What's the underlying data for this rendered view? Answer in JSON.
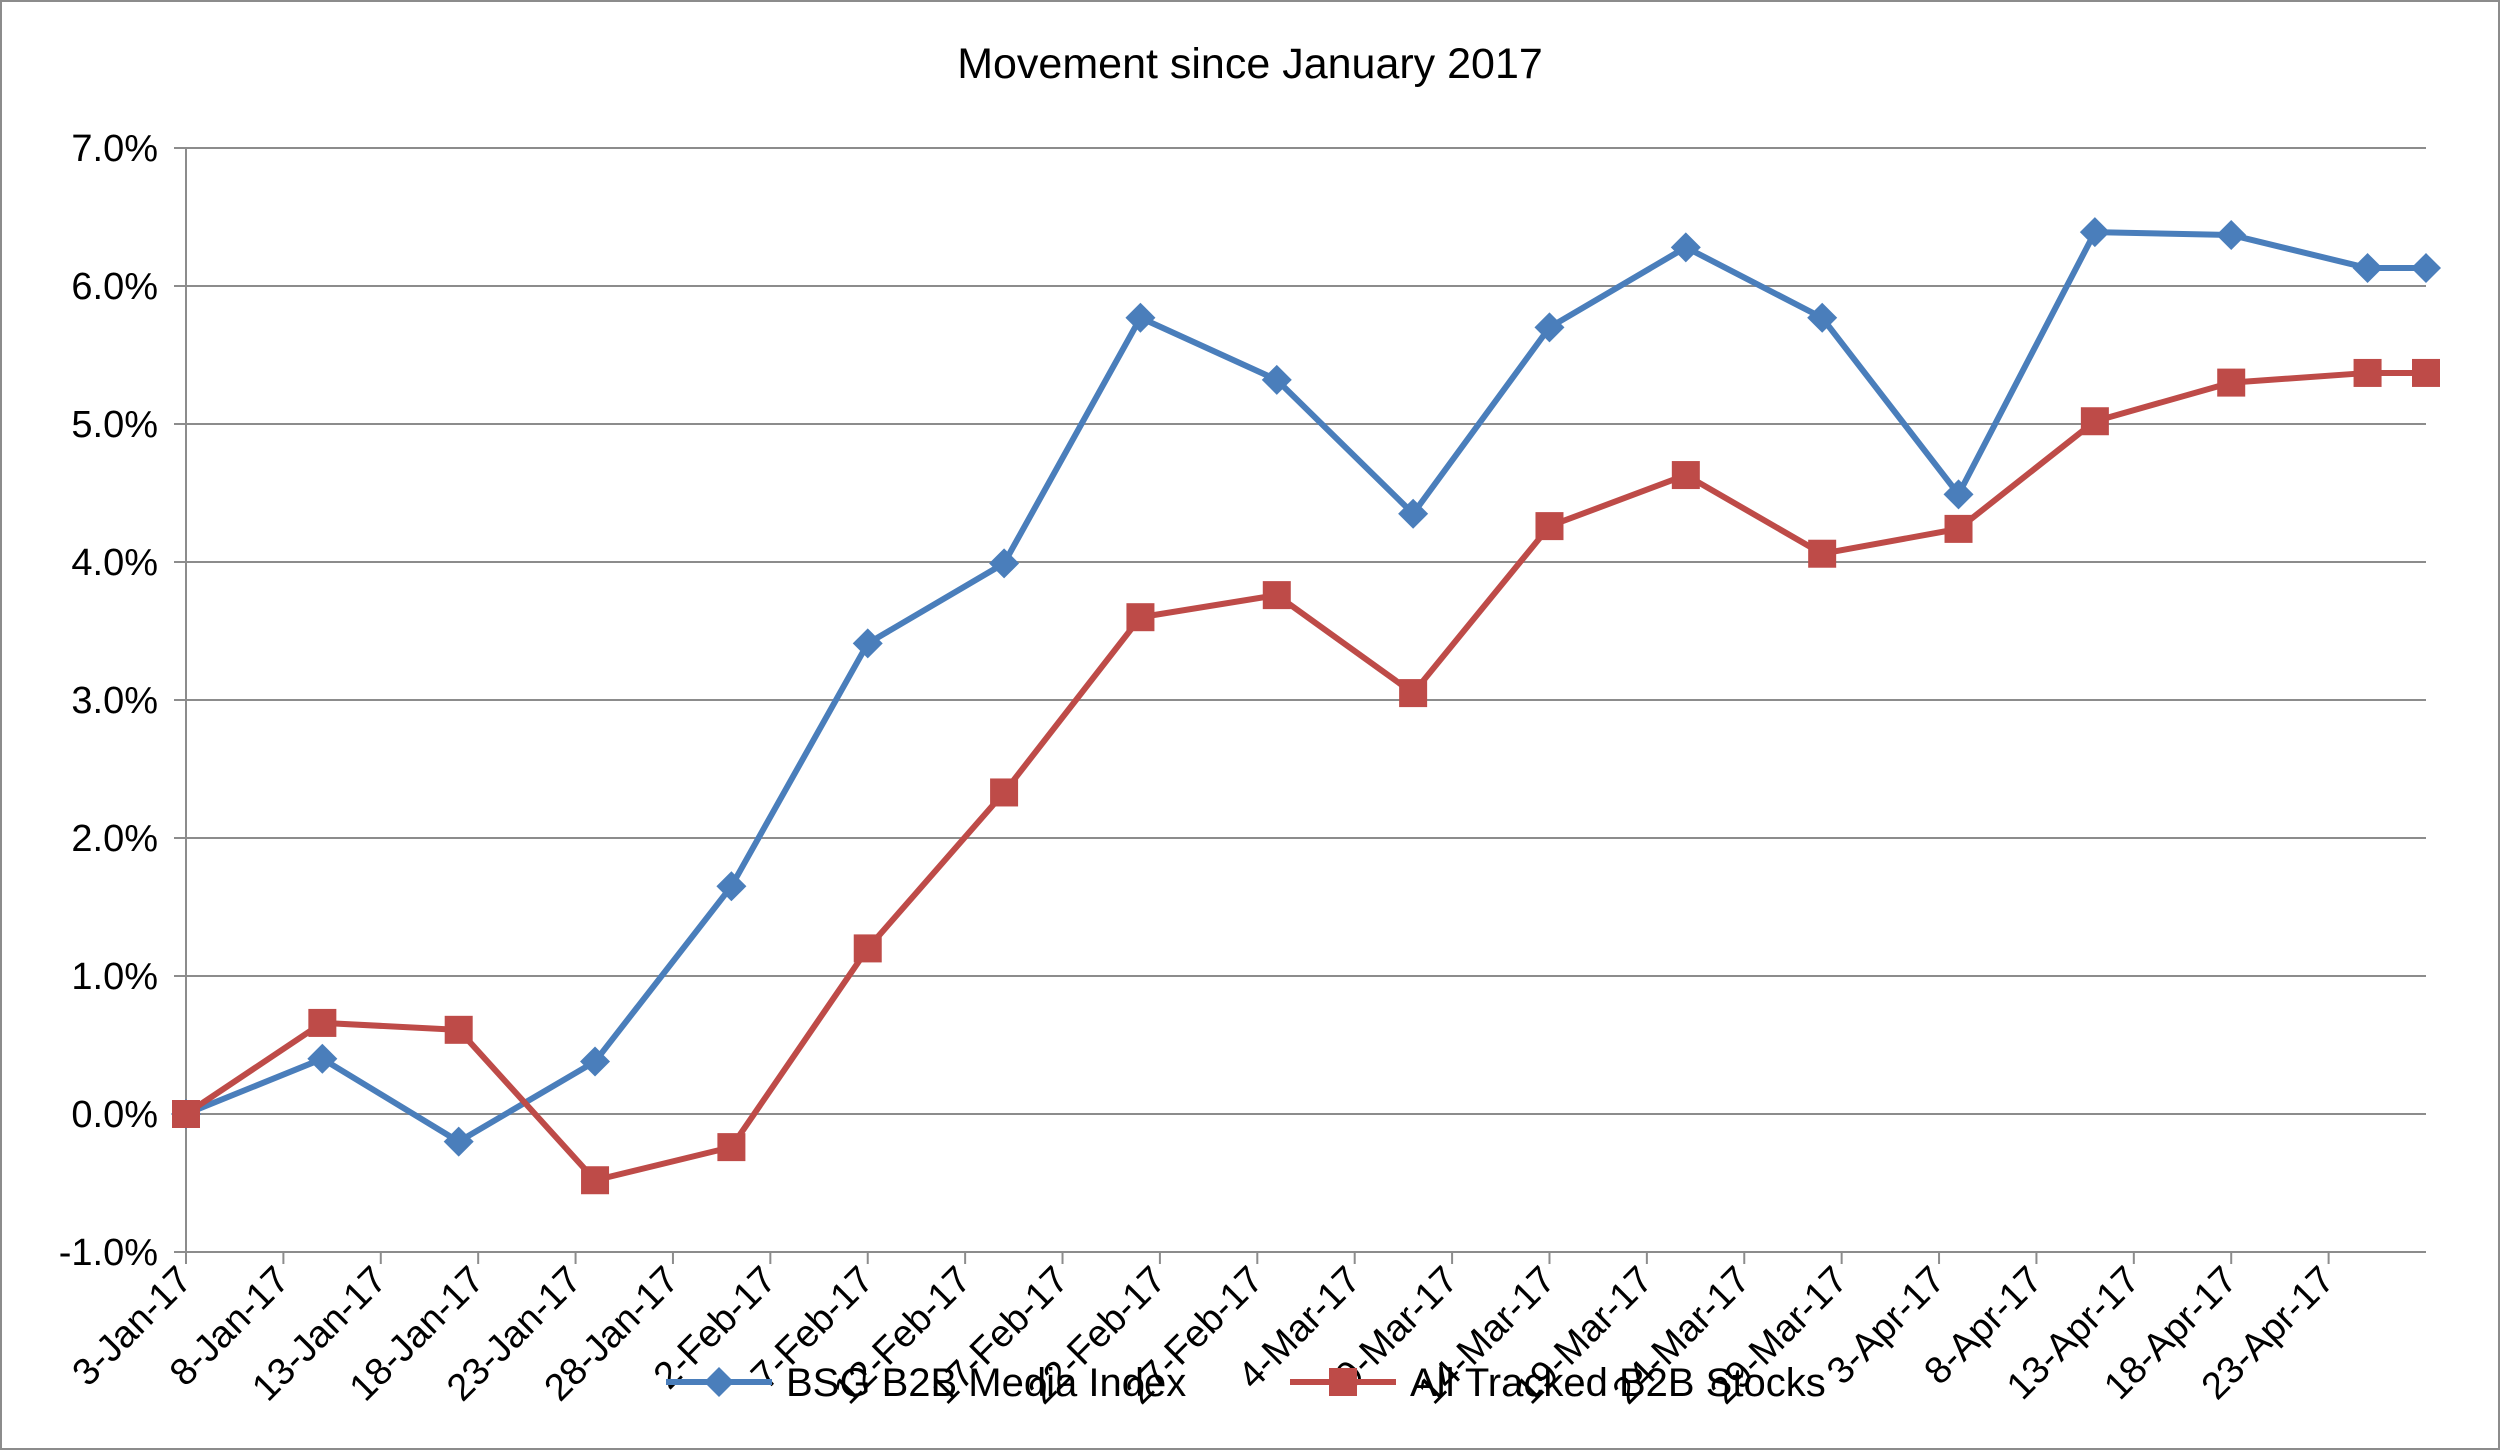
{
  "chart_data": {
    "type": "line",
    "title": "Movement since January 2017",
    "xlabel": "",
    "ylabel": "",
    "x_tick_labels": [
      "3-Jan-17",
      "8-Jan-17",
      "13-Jan-17",
      "18-Jan-17",
      "23-Jan-17",
      "28-Jan-17",
      "2-Feb-17",
      "7-Feb-17",
      "12-Feb-17",
      "17-Feb-17",
      "22-Feb-17",
      "27-Feb-17",
      "4-Mar-17",
      "9-Mar-17",
      "14-Mar-17",
      "19-Mar-17",
      "24-Mar-17",
      "29-Mar-17",
      "3-Apr-17",
      "8-Apr-17",
      "13-Apr-17",
      "18-Apr-17",
      "23-Apr-17"
    ],
    "y_tick_labels": [
      "-1.0%",
      "0.0%",
      "1.0%",
      "2.0%",
      "3.0%",
      "4.0%",
      "5.0%",
      "6.0%",
      "7.0%"
    ],
    "ylim": [
      -1.0,
      7.0
    ],
    "xlim": [
      "3-Jan-17",
      "28-Apr-17"
    ],
    "grid": "horizontal",
    "legend_position": "bottom",
    "x": [
      "3-Jan-17",
      "10-Jan-17",
      "17-Jan-17",
      "24-Jan-17",
      "31-Jan-17",
      "7-Feb-17",
      "14-Feb-17",
      "21-Feb-17",
      "28-Feb-17",
      "7-Mar-17",
      "14-Mar-17",
      "21-Mar-17",
      "28-Mar-17",
      "4-Apr-17",
      "11-Apr-17",
      "18-Apr-17",
      "25-Apr-17",
      "28-Apr-17"
    ],
    "series": [
      {
        "name": "BSG B2B Media Index",
        "color": "#4a7ebb",
        "marker": "diamond",
        "values": [
          0.0,
          0.4,
          -0.2,
          0.38,
          1.65,
          3.41,
          3.99,
          5.77,
          5.32,
          4.35,
          5.7,
          6.28,
          5.77,
          4.49,
          6.39,
          6.37,
          6.13,
          6.13
        ]
      },
      {
        "name": "All Tracked B2B Stocks",
        "color": "#be4b48",
        "marker": "square",
        "values": [
          0.0,
          0.66,
          0.61,
          -0.48,
          -0.24,
          1.2,
          2.33,
          3.6,
          3.76,
          3.05,
          4.26,
          4.63,
          4.06,
          4.24,
          5.02,
          5.3,
          5.37,
          5.37
        ]
      }
    ]
  }
}
